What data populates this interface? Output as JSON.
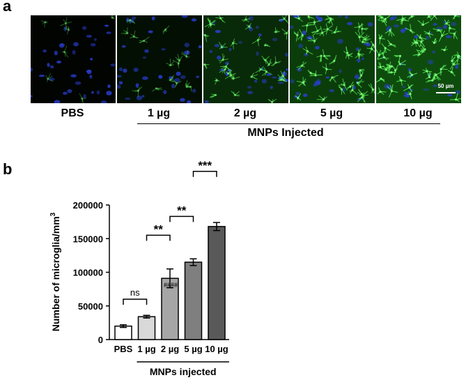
{
  "panel_a": {
    "letter": "a",
    "conditions": [
      "PBS",
      "1 µg",
      "2 µg",
      "5 µg",
      "10 µg"
    ],
    "group_label": "MNPs Injected",
    "scale_bar": "50 µm",
    "green_intensity": [
      0.06,
      0.2,
      0.55,
      0.8,
      1.0
    ]
  },
  "panel_b": {
    "letter": "b"
  },
  "chart_data": {
    "type": "bar",
    "categories": [
      "PBS",
      "1 µg",
      "2 µg",
      "5 µg",
      "10 µg"
    ],
    "values": [
      20000,
      34000,
      91000,
      115000,
      168000
    ],
    "errors": [
      2000,
      2000,
      14000,
      5000,
      6000
    ],
    "bar_colors": [
      "#ffffff",
      "#d9d9d9",
      "#a6a6a6",
      "#7f7f7f",
      "#595959"
    ],
    "ylabel": "Number of microglia/mm",
    "ylabel_sup": "3",
    "xgroup_label": "MNPs injected",
    "yticks": [
      0,
      50000,
      100000,
      150000,
      200000
    ],
    "ylim": [
      0,
      200000
    ],
    "annotations": [
      {
        "from": 0,
        "to": 1,
        "text": "ns",
        "y": 60000
      },
      {
        "from": 1,
        "to": 2,
        "text": "**",
        "y": 155000
      },
      {
        "from": 2,
        "to": 3,
        "text": "**",
        "y": 183000
      },
      {
        "from": 3,
        "to": 4,
        "text": "***",
        "y": 250000
      }
    ],
    "bar_label": {
      "bar": 2,
      "text": "####"
    }
  }
}
